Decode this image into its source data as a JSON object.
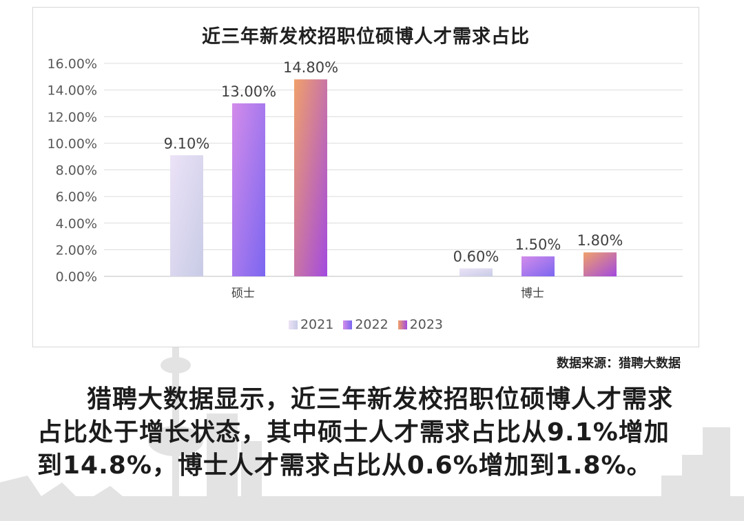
{
  "chart_data": {
    "type": "bar",
    "title": "近三年新发校招职位硕博人才需求占比",
    "categories": [
      "硕士",
      "博士"
    ],
    "series": [
      {
        "name": "2021",
        "values": [
          9.1,
          0.6
        ],
        "labels": [
          "9.10%",
          "0.60%"
        ]
      },
      {
        "name": "2022",
        "values": [
          13.0,
          1.5
        ],
        "labels": [
          "13.00%",
          "1.50%"
        ]
      },
      {
        "name": "2023",
        "values": [
          14.8,
          1.8
        ],
        "labels": [
          "14.80%",
          "1.80%"
        ]
      }
    ],
    "yticks": [
      "0.00%",
      "2.00%",
      "4.00%",
      "6.00%",
      "8.00%",
      "10.00%",
      "12.00%",
      "14.00%",
      "16.00%"
    ],
    "ylim": [
      0,
      16
    ],
    "grid": true,
    "legend_position": "bottom",
    "series_colors": [
      [
        "#ece3f7",
        "#c8cbe6"
      ],
      [
        "#d38cea",
        "#7b66f0"
      ],
      [
        "#f0a06a",
        "#a24ae0"
      ]
    ]
  },
  "source": "数据来源：猎聘大数据",
  "body_text": "猎聘大数据显示，近三年新发校招职位硕博人才需求占比处于增长状态，其中硕士人才需求占比从9.1%增加到14.8%，博士人才需求占比从0.6%增加到1.8%。"
}
